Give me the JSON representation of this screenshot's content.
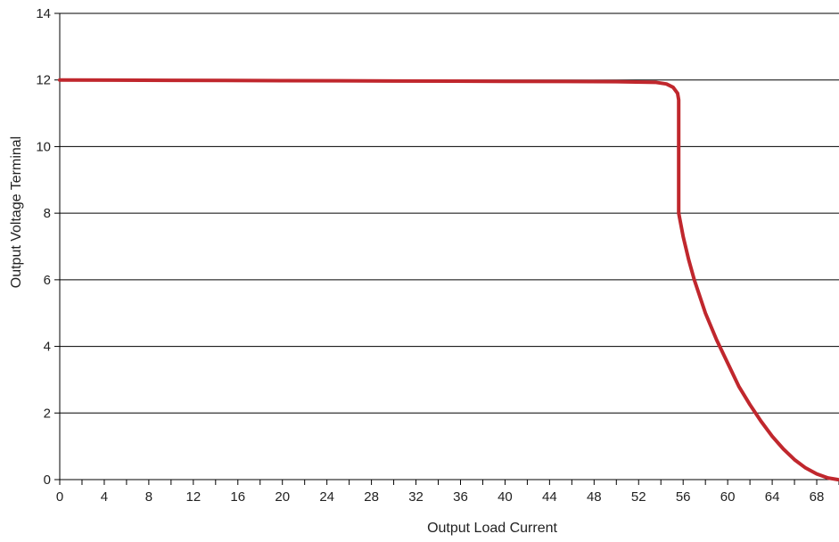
{
  "chart_data": {
    "type": "line",
    "title": "",
    "xlabel": "Output Load Current",
    "ylabel": "Output Voltage Terminal",
    "xlim": [
      0,
      70
    ],
    "ylim": [
      0,
      14
    ],
    "x_tick_labels": [
      "0",
      "4",
      "8",
      "12",
      "16",
      "20",
      "24",
      "28",
      "32",
      "36",
      "40",
      "44",
      "48",
      "52",
      "56",
      "60",
      "64",
      "68"
    ],
    "y_tick_labels": [
      "0",
      "2",
      "4",
      "6",
      "8",
      "10",
      "12",
      "14"
    ],
    "grid": "horizontal",
    "legend": "none",
    "colors": {
      "series": "#c0272d",
      "grid": "#000000",
      "axis": "#000000",
      "text": "#222222"
    },
    "series": [
      {
        "x": [
          0,
          10,
          20,
          30,
          40,
          50,
          53.5,
          54.5,
          55.1,
          55.5,
          55.6,
          55.6,
          55.6,
          56.0,
          56.5,
          57.0,
          58.0,
          59.0,
          60.0,
          61.0,
          62.0,
          63.0,
          64.0,
          65.0,
          66.0,
          67.0,
          68.0,
          69.0,
          69.9
        ],
        "y": [
          12.0,
          11.99,
          11.98,
          11.97,
          11.96,
          11.95,
          11.93,
          11.88,
          11.78,
          11.6,
          11.4,
          10.0,
          8.0,
          7.3,
          6.6,
          6.0,
          5.0,
          4.2,
          3.5,
          2.8,
          2.25,
          1.75,
          1.3,
          0.92,
          0.6,
          0.35,
          0.17,
          0.05,
          0.0
        ]
      }
    ]
  }
}
